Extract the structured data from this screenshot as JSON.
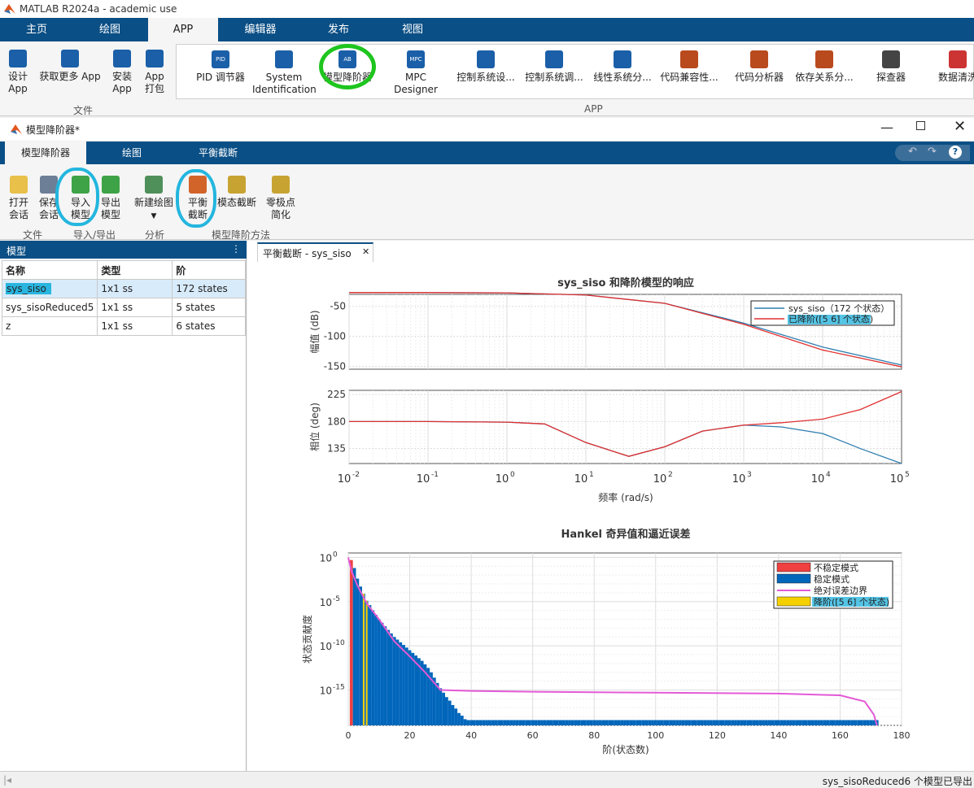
{
  "window": {
    "title": "MATLAB R2024a - academic use"
  },
  "main_tabs": [
    "主页",
    "绘图",
    "APP",
    "编辑器",
    "发布",
    "视图"
  ],
  "file_section": {
    "label": "文件",
    "buttons": [
      {
        "label1": "设计",
        "label2": "App"
      },
      {
        "label1": "获取更多 App",
        "label2": ""
      },
      {
        "label1": "安装",
        "label2": "App"
      },
      {
        "label1": "App",
        "label2": "打包"
      }
    ]
  },
  "app_section": {
    "label": "APP",
    "apps": [
      {
        "l1": "PID 调节器",
        "l2": "",
        "icon": "PID",
        "color": "#1a5fa8"
      },
      {
        "l1": "System",
        "l2": "Identification",
        "icon": "",
        "color": "#1a5fa8"
      },
      {
        "l1": "模型降阶器",
        "l2": "",
        "icon": "AB CD",
        "color": "#1a5fa8"
      },
      {
        "l1": "MPC Designer",
        "l2": "",
        "icon": "MPC",
        "color": "#1a5fa8"
      },
      {
        "l1": "控制系统设...",
        "l2": "",
        "icon": "",
        "color": "#1a5fa8"
      },
      {
        "l1": "控制系统调...",
        "l2": "",
        "icon": "",
        "color": "#1a5fa8"
      },
      {
        "l1": "线性系统分...",
        "l2": "",
        "icon": "",
        "color": "#1a5fa8"
      },
      {
        "l1": "代码兼容性...",
        "l2": "",
        "icon": "",
        "color": "#b94a1e"
      },
      {
        "l1": "代码分析器",
        "l2": "",
        "icon": "",
        "color": "#b94a1e"
      },
      {
        "l1": "依存关系分...",
        "l2": "",
        "icon": "",
        "color": "#b94a1e"
      },
      {
        "l1": "探查器",
        "l2": "",
        "icon": "",
        "color": "#444"
      },
      {
        "l1": "数据清洗",
        "l2": "",
        "icon": "",
        "color": "#c33"
      }
    ]
  },
  "reducer_window": {
    "title": "模型降阶器*",
    "tabs": [
      "模型降阶器",
      "绘图",
      "平衡截断"
    ],
    "ribbon": {
      "open_l1": "打开",
      "open_l2": "会话",
      "save_l1": "保存",
      "save_l2": "会话",
      "file_label": "文件",
      "import_l1": "导入",
      "import_l2": "模型",
      "export_l1": "导出",
      "export_l2": "模型",
      "io_label": "导入/导出",
      "newplot_label": "新建绘图",
      "analysis_label": "分析",
      "bal_l1": "平衡",
      "bal_l2": "截断",
      "modal_label": "模态截断",
      "pz_l1": "零极点",
      "pz_l2": "简化",
      "method_label": "模型降阶方法"
    }
  },
  "models_panel": {
    "title": "模型",
    "columns": [
      "名称",
      "类型",
      "阶"
    ],
    "rows": [
      [
        "sys_siso",
        "1x1 ss",
        "172 states"
      ],
      [
        "sys_sisoReduced5",
        "1x1 ss",
        "5 states"
      ],
      [
        "z",
        "1x1 ss",
        "6 states"
      ]
    ]
  },
  "doc_tab": {
    "label": "平衡截断 - sys_siso"
  },
  "status": {
    "text": "sys_sisoReduced6 个模型已导出"
  },
  "chart_data": [
    {
      "type": "line",
      "title": "sys_siso 和降阶模型的响应",
      "subplot": "magnitude",
      "ylabel": "幅值 (dB)",
      "xscale": "log",
      "xlim": [
        0.01,
        100000
      ],
      "ylim": [
        -155,
        -30
      ],
      "yticks": [
        "-50",
        "-100",
        "-150"
      ],
      "legend": [
        "sys_siso（172 个状态）",
        "已降阶([5 6] 个状态)"
      ],
      "series": [
        {
          "name": "sys_siso（172 个状态）",
          "color": "#2f7eb0",
          "x": [
            0.01,
            0.1,
            1,
            10,
            100,
            1000,
            10000,
            100000
          ],
          "y": [
            -27,
            -27,
            -27.5,
            -31,
            -45,
            -78,
            -118,
            -148
          ]
        },
        {
          "name": "已降阶([5 6] 个状态)",
          "color": "#e03030",
          "x": [
            0.01,
            0.1,
            1,
            10,
            100,
            1000,
            10000,
            100000
          ],
          "y": [
            -27,
            -27,
            -27.5,
            -31,
            -45,
            -80,
            -123,
            -151
          ]
        }
      ]
    },
    {
      "type": "line",
      "subplot": "phase",
      "xlabel": "频率 (rad/s)",
      "ylabel": "相位 (deg)",
      "xscale": "log",
      "xlim": [
        0.01,
        100000
      ],
      "ylim": [
        110,
        232
      ],
      "yticks": [
        "135",
        "180",
        "225"
      ],
      "xticks": [
        "10",
        "10",
        "10",
        "10",
        "10",
        "10",
        "10",
        "10"
      ],
      "xtick_exps": [
        "-2",
        "-1",
        "0",
        "1",
        "2",
        "3",
        "4",
        "5"
      ],
      "series": [
        {
          "name": "sys_siso（172 个状态）",
          "color": "#2f7eb0",
          "x": [
            0.01,
            0.1,
            1,
            3,
            10,
            35,
            100,
            300,
            1000,
            3000,
            10000,
            30000,
            100000
          ],
          "y": [
            180,
            180,
            179,
            176,
            145,
            122,
            138,
            164,
            174,
            171,
            160,
            135,
            110
          ]
        },
        {
          "name": "已降阶([5 6] 个状态)",
          "color": "#e03030",
          "x": [
            0.01,
            0.1,
            1,
            3,
            10,
            35,
            100,
            300,
            1000,
            3000,
            10000,
            30000,
            100000
          ],
          "y": [
            180,
            180,
            179,
            176,
            145,
            122,
            138,
            164,
            174,
            178,
            184,
            200,
            230
          ]
        }
      ]
    },
    {
      "type": "bar",
      "title": "Hankel 奇异值和逼近误差",
      "xlabel": "阶(状态数)",
      "ylabel": "状态贡献度",
      "yscale": "log",
      "xlim": [
        0,
        180
      ],
      "xticks": [
        "0",
        "20",
        "40",
        "60",
        "80",
        "100",
        "120",
        "140",
        "160",
        "180"
      ],
      "ylim_exp": [
        -19,
        0.5
      ],
      "yticks": [
        "10",
        "10",
        "10",
        "10"
      ],
      "ytick_exps": [
        "0",
        "-5",
        "-10",
        "-15"
      ],
      "legend": [
        "不稳定模式",
        "稳定模式",
        "绝对误差边界",
        "降阶([5 6] 个状态)"
      ],
      "colors": {
        "unstable": "#f04040",
        "stable": "#0066bb",
        "bound": "#e35ad6",
        "reduced": "#f5d000"
      },
      "unstable_orders": [
        1
      ],
      "reduced_orders": [
        5,
        6
      ],
      "stable_log10": [
        -0.3,
        -1.2,
        -2.4,
        -3.3,
        -4.1,
        -4.9,
        -5.4,
        -6.0,
        -6.5,
        -7.0,
        -7.4,
        -7.8,
        -8.2,
        -8.6,
        -9.0,
        -9.3,
        -9.6,
        -9.9,
        -10.2,
        -10.5,
        -10.8,
        -11.1,
        -11.4,
        -11.7,
        -12.1,
        -12.5,
        -13.0,
        -13.6,
        -14.2,
        -14.8,
        -15.3,
        -15.8,
        -16.2,
        -16.7,
        -17.1,
        -17.6,
        -17.9,
        -18.3
      ],
      "stable_floor_log10": -18.4,
      "bound_x": [
        0,
        1,
        3,
        6,
        10,
        15,
        20,
        25,
        30,
        40,
        60,
        100,
        140,
        160,
        168,
        171,
        172
      ],
      "bound_log10": [
        0,
        -1.5,
        -3.2,
        -5.2,
        -7.0,
        -9.5,
        -11.2,
        -13.0,
        -15.0,
        -15.1,
        -15.2,
        -15.3,
        -15.4,
        -15.6,
        -16.3,
        -17.8,
        -19
      ]
    }
  ]
}
